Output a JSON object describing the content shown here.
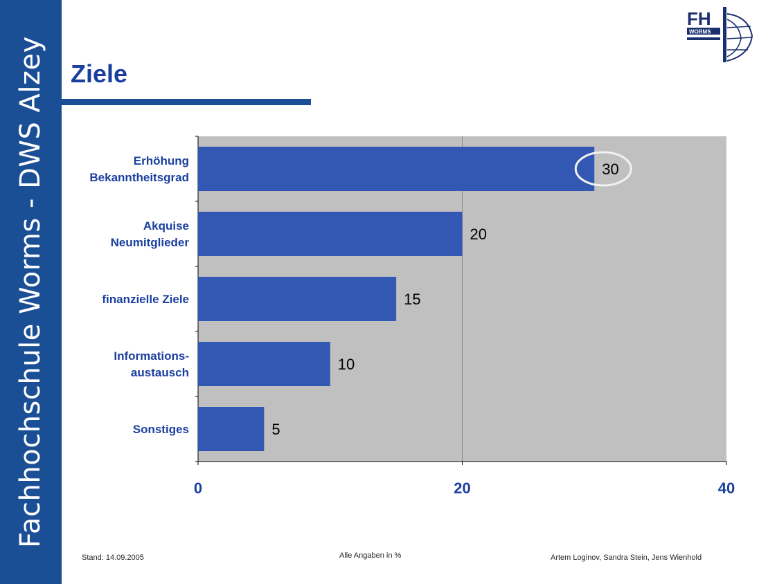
{
  "sidebar": {
    "text": "Fachhochschule Worms - DWS Alzey"
  },
  "header": {
    "title": "Ziele"
  },
  "logo": {
    "text_main": "FH",
    "text_sub": "WORMS"
  },
  "colors": {
    "bar": "#3358b4",
    "plot_bg": "#c0c0c0",
    "brand_blue": "#1a4f96",
    "title_blue": "#1a3fa0"
  },
  "chart_data": {
    "type": "bar",
    "orientation": "horizontal",
    "categories": [
      [
        "Erhöhung",
        "Bekanntheitsgrad"
      ],
      [
        "Akquise",
        "Neumitglieder"
      ],
      [
        "finanzielle Ziele"
      ],
      [
        "Informations-",
        "austausch"
      ],
      [
        "Sonstiges"
      ]
    ],
    "values": [
      30,
      20,
      15,
      10,
      5
    ],
    "xlim": [
      0,
      40
    ],
    "xticks": [
      0,
      20,
      40
    ],
    "grid": "vertical",
    "highlight": {
      "category_index": 0,
      "shape": "ellipse",
      "color": "#f2f2f2"
    }
  },
  "footer": {
    "left": "Stand: 14.09.2005",
    "center": "Alle Angaben in %",
    "right": "Artem Loginov, Sandra Stein, Jens Wienhold"
  }
}
